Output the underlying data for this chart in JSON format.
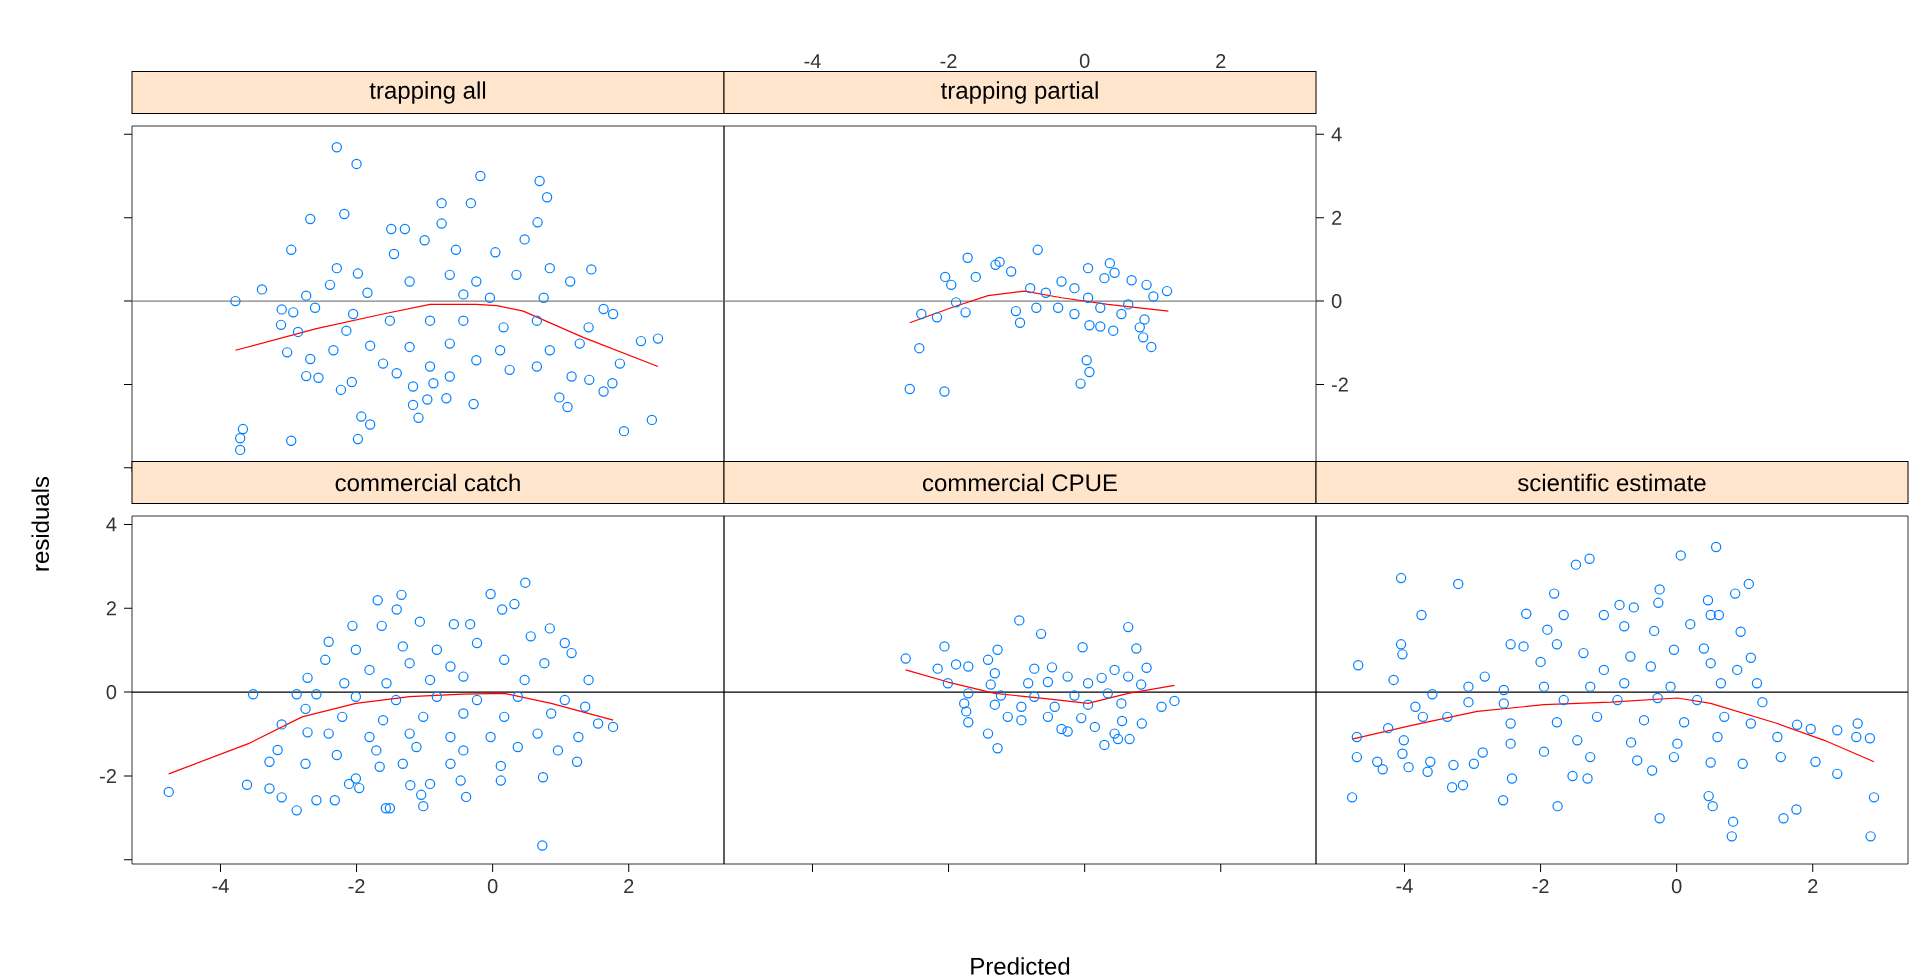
{
  "chart_data": [
    {
      "type": "scatter",
      "title": "trapping all",
      "xlim": [
        -5.3,
        3.4
      ],
      "ylim": [
        -4.1,
        4.2
      ],
      "xticks": [
        -4,
        -2,
        0,
        2
      ],
      "yticks": [
        -4,
        -2,
        0,
        2,
        4
      ],
      "tick_labels": false,
      "ref_lines": [
        {
          "axis": "y",
          "value": 0,
          "color": "#808080"
        }
      ],
      "series": [
        {
          "type": "scatter",
          "color": "#0080ff",
          "marker": "circle",
          "x": [
            -2.29,
            -2.0,
            -0.18,
            0.69,
            0.8,
            -0.75,
            -0.32,
            -2.68,
            -2.18,
            0.66,
            -2.96,
            -1.49,
            -1.29,
            -0.75,
            -1.0,
            -1.45,
            -0.54,
            0.04,
            0.47,
            -2.29,
            -1.98,
            1.45,
            -3.39,
            -3.78,
            -2.74,
            -2.39,
            -1.84,
            -1.22,
            -0.63,
            -0.24,
            0.35,
            0.84,
            1.14,
            -0.43,
            -0.04,
            0.75,
            -3.1,
            -2.93,
            -2.61,
            -2.05,
            1.63,
            1.77,
            -3.11,
            -2.86,
            -2.15,
            -1.51,
            -0.92,
            -0.43,
            0.16,
            0.65,
            1.41,
            2.18,
            2.43,
            -3.02,
            -2.34,
            -1.8,
            -1.22,
            -0.63,
            -0.24,
            0.11,
            0.84,
            1.28,
            -2.68,
            -1.61,
            -0.92,
            0.25,
            0.65,
            1.87,
            -2.74,
            -2.56,
            -2.07,
            -1.41,
            -0.63,
            1.16,
            -2.23,
            -1.17,
            -0.87,
            1.42,
            1.76,
            0.98,
            1.63,
            -1.17,
            -0.96,
            -0.68,
            -0.28,
            1.1,
            -1.09,
            -1.93,
            -1.8,
            1.93,
            2.34,
            -3.67,
            -3.71,
            -3.71,
            -2.96,
            -1.98
          ],
          "values": [
            3.69,
            3.29,
            3.0,
            2.88,
            2.49,
            2.35,
            2.35,
            1.97,
            2.09,
            1.89,
            1.23,
            1.73,
            1.73,
            1.86,
            1.46,
            1.13,
            1.23,
            1.17,
            1.48,
            0.79,
            0.66,
            0.76,
            0.28,
            0,
            0.13,
            0.39,
            0.2,
            0.47,
            0.63,
            0.47,
            0.63,
            0.79,
            0.47,
            0.16,
            0.08,
            0.08,
            -0.2,
            -0.27,
            -0.16,
            -0.31,
            -0.19,
            -0.31,
            -0.57,
            -0.74,
            -0.71,
            -0.47,
            -0.47,
            -0.47,
            -0.63,
            -0.47,
            -0.63,
            -0.96,
            -0.9,
            -1.23,
            -1.18,
            -1.07,
            -1.1,
            -1.02,
            -1.42,
            -1.18,
            -1.18,
            -1.02,
            -1.39,
            -1.5,
            -1.57,
            -1.65,
            -1.57,
            -1.5,
            -1.8,
            -1.84,
            -1.94,
            -1.73,
            -1.81,
            -1.81,
            -2.13,
            -2.05,
            -1.97,
            -1.89,
            -1.97,
            -2.31,
            -2.17,
            -2.49,
            -2.36,
            -2.33,
            -2.47,
            -2.54,
            -2.8,
            -2.77,
            -2.96,
            -3.12,
            -2.85,
            -3.07,
            -3.29,
            -3.57,
            -3.35,
            -3.31
          ]
        },
        {
          "type": "line",
          "color": "#ff0000",
          "marker": "none",
          "x": [
            -3.78,
            -2.59,
            -1.61,
            -0.92,
            -0.24,
            0.06,
            0.45,
            1.33,
            2.43
          ],
          "values": [
            -1.18,
            -0.66,
            -0.31,
            -0.08,
            -0.08,
            -0.11,
            -0.24,
            -0.87,
            -1.57
          ]
        }
      ]
    },
    {
      "type": "scatter",
      "title": "trapping partial",
      "xlim": [
        -5.3,
        3.4
      ],
      "ylim": [
        -4.1,
        4.2
      ],
      "xticks": [
        -4,
        -2,
        0,
        2
      ],
      "yticks": [
        {
          "value": -4,
          "label": null
        },
        -2,
        0,
        2,
        4
      ],
      "ref_lines": [
        {
          "axis": "y",
          "value": 0,
          "color": "#808080"
        }
      ],
      "series": [
        {
          "type": "scatter",
          "color": "#0080ff",
          "marker": "circle",
          "x": [
            -0.69,
            -1.72,
            -1.31,
            -1.25,
            -1.08,
            -1.6,
            -2.05,
            -1.96,
            -0.34,
            0.05,
            0.37,
            0.44,
            0.29,
            0.69,
            0.91,
            1.21,
            1.01,
            -0.15,
            -0.8,
            -0.57,
            0.05,
            0.64,
            -1.89,
            -1.75,
            -2.4,
            -2.17,
            -1.01,
            -0.95,
            -0.71,
            -0.39,
            -0.15,
            0.23,
            0.54,
            0.88,
            0.07,
            0.23,
            0.42,
            0.81,
            0.86,
            0.98,
            -2.43,
            0.03,
            0.07,
            -0.06,
            -2.57,
            -2.06
          ],
          "values": [
            1.23,
            1.04,
            0.87,
            0.94,
            0.71,
            0.58,
            0.58,
            0.39,
            0.47,
            0.79,
            0.91,
            0.68,
            0.55,
            0.5,
            0.39,
            0.24,
            0.11,
            0.31,
            0.31,
            0.2,
            0.08,
            -0.08,
            -0.03,
            -0.27,
            -0.31,
            -0.39,
            -0.24,
            -0.52,
            -0.16,
            -0.16,
            -0.31,
            -0.16,
            -0.31,
            -0.44,
            -0.58,
            -0.61,
            -0.71,
            -0.63,
            -0.87,
            -1.1,
            -1.13,
            -1.42,
            -1.7,
            -1.98,
            -2.11,
            -2.17
          ]
        },
        {
          "type": "line",
          "color": "#ff0000",
          "marker": "none",
          "x": [
            -2.57,
            -1.91,
            -1.42,
            -0.88,
            -0.34,
            0.34,
            1.23
          ],
          "values": [
            -0.52,
            -0.13,
            0.13,
            0.24,
            0.08,
            -0.08,
            -0.24
          ]
        }
      ]
    },
    {
      "type": "scatter",
      "title": "commercial catch",
      "ylabel": "residuals",
      "xlim": [
        -5.3,
        3.4
      ],
      "ylim": [
        -4.1,
        4.2
      ],
      "xticks": [
        -4,
        -2,
        0,
        2
      ],
      "yticks": [
        {
          "value": -4,
          "label": null
        },
        -2,
        0,
        2,
        4
      ],
      "ref_lines": [
        {
          "axis": "y",
          "value": 0,
          "color": "#000000"
        }
      ],
      "series": [
        {
          "type": "scatter",
          "color": "#0080ff",
          "marker": "circle",
          "x": [
            0.48,
            -0.03,
            -1.34,
            -1.69,
            -1.41,
            0.14,
            0.32,
            -2.06,
            -1.63,
            -1.07,
            -0.57,
            -0.33,
            0.84,
            -2.41,
            -2.46,
            -2.01,
            -1.32,
            -0.82,
            -0.23,
            0.56,
            1.06,
            1.16,
            -1.81,
            -1.22,
            -0.62,
            0.17,
            0.76,
            -2.72,
            -2.18,
            -1.56,
            -0.92,
            -0.43,
            0.47,
            1.41,
            -3.52,
            -2.88,
            -2.59,
            -2.01,
            -1.42,
            -0.82,
            -0.23,
            0.37,
            1.06,
            -2.75,
            -2.21,
            -1.61,
            -1.02,
            -0.43,
            0.17,
            0.86,
            1.36,
            -3.1,
            -2.72,
            -2.41,
            -1.81,
            -1.22,
            -0.62,
            -0.03,
            0.66,
            1.77,
            1.55,
            1.26,
            -3.16,
            -2.29,
            -1.71,
            -1.12,
            -0.43,
            0.37,
            0.96,
            -3.28,
            -2.75,
            -1.66,
            -1.32,
            -0.62,
            0.12,
            1.24,
            -2.01,
            0.12,
            0.74,
            -3.61,
            -3.28,
            -2.11,
            -1.96,
            -1.21,
            -0.92,
            -0.47,
            -4.76,
            -3.1,
            -2.59,
            -2.32,
            -1.05,
            -0.39,
            -2.88,
            -1.57,
            -1.51,
            -1.02,
            0.73
          ],
          "values": [
            2.61,
            2.34,
            2.32,
            2.19,
            1.97,
            1.97,
            2.1,
            1.58,
            1.58,
            1.68,
            1.62,
            1.62,
            1.52,
            1.2,
            0.77,
            1.01,
            1.09,
            1.01,
            1.17,
            1.33,
            1.17,
            0.93,
            0.53,
            0.69,
            0.61,
            0.77,
            0.69,
            0.34,
            0.21,
            0.21,
            0.29,
            0.37,
            0.29,
            0.29,
            -0.05,
            -0.05,
            -0.05,
            -0.11,
            -0.19,
            -0.11,
            -0.19,
            -0.11,
            -0.19,
            -0.4,
            -0.59,
            -0.67,
            -0.59,
            -0.51,
            -0.59,
            -0.51,
            -0.35,
            -0.77,
            -0.96,
            -0.99,
            -1.07,
            -0.99,
            -1.07,
            -1.07,
            -0.99,
            -0.83,
            -0.75,
            -1.07,
            -1.38,
            -1.5,
            -1.39,
            -1.31,
            -1.39,
            -1.31,
            -1.39,
            -1.66,
            -1.71,
            -1.78,
            -1.71,
            -1.71,
            -1.76,
            -1.66,
            -2.06,
            -2.11,
            -2.03,
            -2.21,
            -2.3,
            -2.19,
            -2.29,
            -2.22,
            -2.19,
            -2.11,
            -2.38,
            -2.51,
            -2.58,
            -2.58,
            -2.45,
            -2.5,
            -2.82,
            -2.77,
            -2.77,
            -2.72,
            -3.66
          ]
        },
        {
          "type": "line",
          "color": "#ff0000",
          "marker": "none",
          "x": [
            -4.76,
            -3.59,
            -2.8,
            -2.01,
            -1.22,
            -0.43,
            0.17,
            0.86,
            1.77
          ],
          "values": [
            -1.95,
            -1.23,
            -0.59,
            -0.27,
            -0.11,
            -0.05,
            -0.03,
            -0.27,
            -0.67
          ]
        }
      ]
    },
    {
      "type": "scatter",
      "title": "commercial CPUE",
      "xlabel": "Predicted",
      "xlim": [
        -5.3,
        3.4
      ],
      "ylim": [
        -4.1,
        4.2
      ],
      "xticks": [
        -4,
        -2,
        0,
        2
      ],
      "tick_labels": false,
      "ref_lines": [
        {
          "axis": "y",
          "value": 0,
          "color": "#000000"
        }
      ],
      "series": [
        {
          "type": "scatter",
          "color": "#0080ff",
          "marker": "circle",
          "x": [
            -0.96,
            0.64,
            -0.64,
            -2.06,
            -0.03,
            0.76,
            -1.28,
            -2.63,
            -1.42,
            -1.89,
            -1.71,
            -2.16,
            -0.74,
            -0.48,
            0.44,
            0.91,
            -1.32,
            -0.25,
            0.25,
            0.64,
            -2.01,
            -1.38,
            -0.83,
            -0.54,
            0.05,
            0.83,
            -1.71,
            -1.23,
            -0.74,
            -0.15,
            0.34,
            1.32,
            -1.77,
            -1.32,
            -0.93,
            -0.44,
            0.05,
            0.54,
            1.13,
            -1.74,
            -1.13,
            -0.54,
            -0.05,
            0.55,
            0.84,
            -1.71,
            -0.93,
            -0.34,
            0.15,
            -1.42,
            0.44,
            0.66,
            0.49,
            0.29,
            -1.28,
            -0.25
          ],
          "values": [
            1.71,
            1.55,
            1.39,
            1.09,
            1.07,
            1.04,
            1.01,
            0.8,
            0.77,
            0.66,
            0.61,
            0.56,
            0.56,
            0.59,
            0.53,
            0.58,
            0.45,
            0.37,
            0.34,
            0.37,
            0.21,
            0.18,
            0.21,
            0.24,
            0.21,
            0.18,
            -0.03,
            -0.08,
            -0.11,
            -0.08,
            -0.03,
            -0.21,
            -0.27,
            -0.3,
            -0.35,
            -0.35,
            -0.3,
            -0.27,
            -0.35,
            -0.46,
            -0.59,
            -0.59,
            -0.62,
            -0.69,
            -0.75,
            -0.72,
            -0.67,
            -0.88,
            -0.83,
            -0.99,
            -0.99,
            -1.12,
            -1.12,
            -1.26,
            -1.34,
            -0.94
          ]
        },
        {
          "type": "line",
          "color": "#ff0000",
          "marker": "none",
          "x": [
            -2.63,
            -2.01,
            -1.32,
            -0.54,
            0.05,
            0.64,
            1.32
          ],
          "values": [
            0.53,
            0.24,
            -0.03,
            -0.16,
            -0.27,
            -0.03,
            0.16
          ]
        }
      ]
    },
    {
      "type": "scatter",
      "title": "scientific estimate",
      "xlim": [
        -5.3,
        3.4
      ],
      "ylim": [
        -4.1,
        4.2
      ],
      "xticks": [
        -4,
        -2,
        0,
        2
      ],
      "tick_labels": "x",
      "ref_lines": [
        {
          "axis": "y",
          "value": 0,
          "color": "#000000"
        }
      ],
      "series": [
        {
          "type": "scatter",
          "color": "#0080ff",
          "marker": "circle",
          "x": [
            0.58,
            0.06,
            -1.28,
            -1.48,
            -4.05,
            -3.21,
            1.06,
            0.86,
            -1.8,
            -0.25,
            0.46,
            -3.75,
            -2.21,
            -1.66,
            -1.07,
            -0.84,
            -0.63,
            -0.27,
            0.5,
            0.62,
            -1.9,
            -0.77,
            -0.33,
            0.2,
            0.94,
            -4.05,
            -4.03,
            -2.44,
            -2.25,
            -1.76,
            -1.37,
            -0.68,
            -0.04,
            0.4,
            1.09,
            -4.68,
            -4.16,
            -2.82,
            -2.0,
            -1.07,
            -0.38,
            0.5,
            0.89,
            -3.06,
            -2.54,
            -1.95,
            -1.27,
            -0.77,
            -0.09,
            0.65,
            1.18,
            -3.59,
            -3.06,
            -3.84,
            -2.54,
            -1.66,
            -0.87,
            -0.28,
            0.3,
            1.26,
            -3.37,
            -3.73,
            -2.44,
            -1.76,
            -1.17,
            -0.48,
            0.11,
            0.7,
            1.09,
            -4.24,
            1.77,
            1.97,
            2.36,
            2.66,
            -4.7,
            -4.01,
            -2.44,
            -1.46,
            -0.67,
            0.01,
            0.6,
            1.48,
            2.64,
            2.84,
            -4.7,
            -4.4,
            -4.03,
            -3.62,
            -3.28,
            -2.98,
            -2.85,
            -1.95,
            -1.27,
            -0.58,
            -0.04,
            0.5,
            1.53,
            2.04,
            -4.32,
            -3.94,
            -3.66,
            -1.53,
            -1.31,
            -0.36,
            2.36,
            -3.3,
            -3.14,
            -2.42,
            0.97,
            -4.77,
            -2.55,
            -1.75,
            0.47,
            0.53,
            1.76,
            2.9,
            -0.25,
            0.83,
            1.57,
            0.81,
            2.85
          ],
          "values": [
            3.46,
            3.26,
            3.18,
            3.04,
            2.72,
            2.58,
            2.58,
            2.35,
            2.35,
            2.45,
            2.19,
            1.84,
            1.87,
            1.84,
            1.84,
            2.08,
            2.02,
            2.13,
            1.84,
            1.84,
            1.49,
            1.57,
            1.46,
            1.62,
            1.44,
            1.14,
            0.9,
            1.14,
            1.09,
            1.14,
            0.93,
            0.85,
            1.01,
            1.04,
            0.82,
            0.64,
            0.29,
            0.37,
            0.72,
            0.53,
            0.61,
            0.69,
            0.53,
            0.13,
            0.05,
            0.13,
            0.13,
            0.21,
            0.13,
            0.21,
            0.21,
            -0.05,
            -0.24,
            -0.35,
            -0.27,
            -0.19,
            -0.19,
            -0.14,
            -0.19,
            -0.24,
            -0.59,
            -0.59,
            -0.75,
            -0.72,
            -0.59,
            -0.67,
            -0.72,
            -0.59,
            -0.75,
            -0.86,
            -0.78,
            -0.88,
            -0.91,
            -0.75,
            -1.07,
            -1.15,
            -1.23,
            -1.15,
            -1.2,
            -1.23,
            -1.07,
            -1.07,
            -1.07,
            -1.1,
            -1.55,
            -1.66,
            -1.47,
            -1.66,
            -1.74,
            -1.71,
            -1.44,
            -1.42,
            -1.55,
            -1.63,
            -1.55,
            -1.68,
            -1.55,
            -1.66,
            -1.84,
            -1.79,
            -1.9,
            -2.0,
            -2.06,
            -1.87,
            -1.95,
            -2.27,
            -2.22,
            -2.06,
            -1.71,
            -2.51,
            -2.58,
            -2.72,
            -2.48,
            -2.72,
            -2.8,
            -2.51,
            -3.01,
            -3.09,
            -3.01,
            -3.44,
            -3.44
          ]
        },
        {
          "type": "line",
          "color": "#ff0000",
          "marker": "none",
          "x": [
            -4.77,
            -3.91,
            -2.93,
            -1.95,
            -0.97,
            0.01,
            0.5,
            1.48,
            2.17,
            2.9
          ],
          "values": [
            -1.12,
            -0.8,
            -0.46,
            -0.3,
            -0.24,
            -0.14,
            -0.27,
            -0.75,
            -1.15,
            -1.66
          ]
        }
      ]
    }
  ]
}
